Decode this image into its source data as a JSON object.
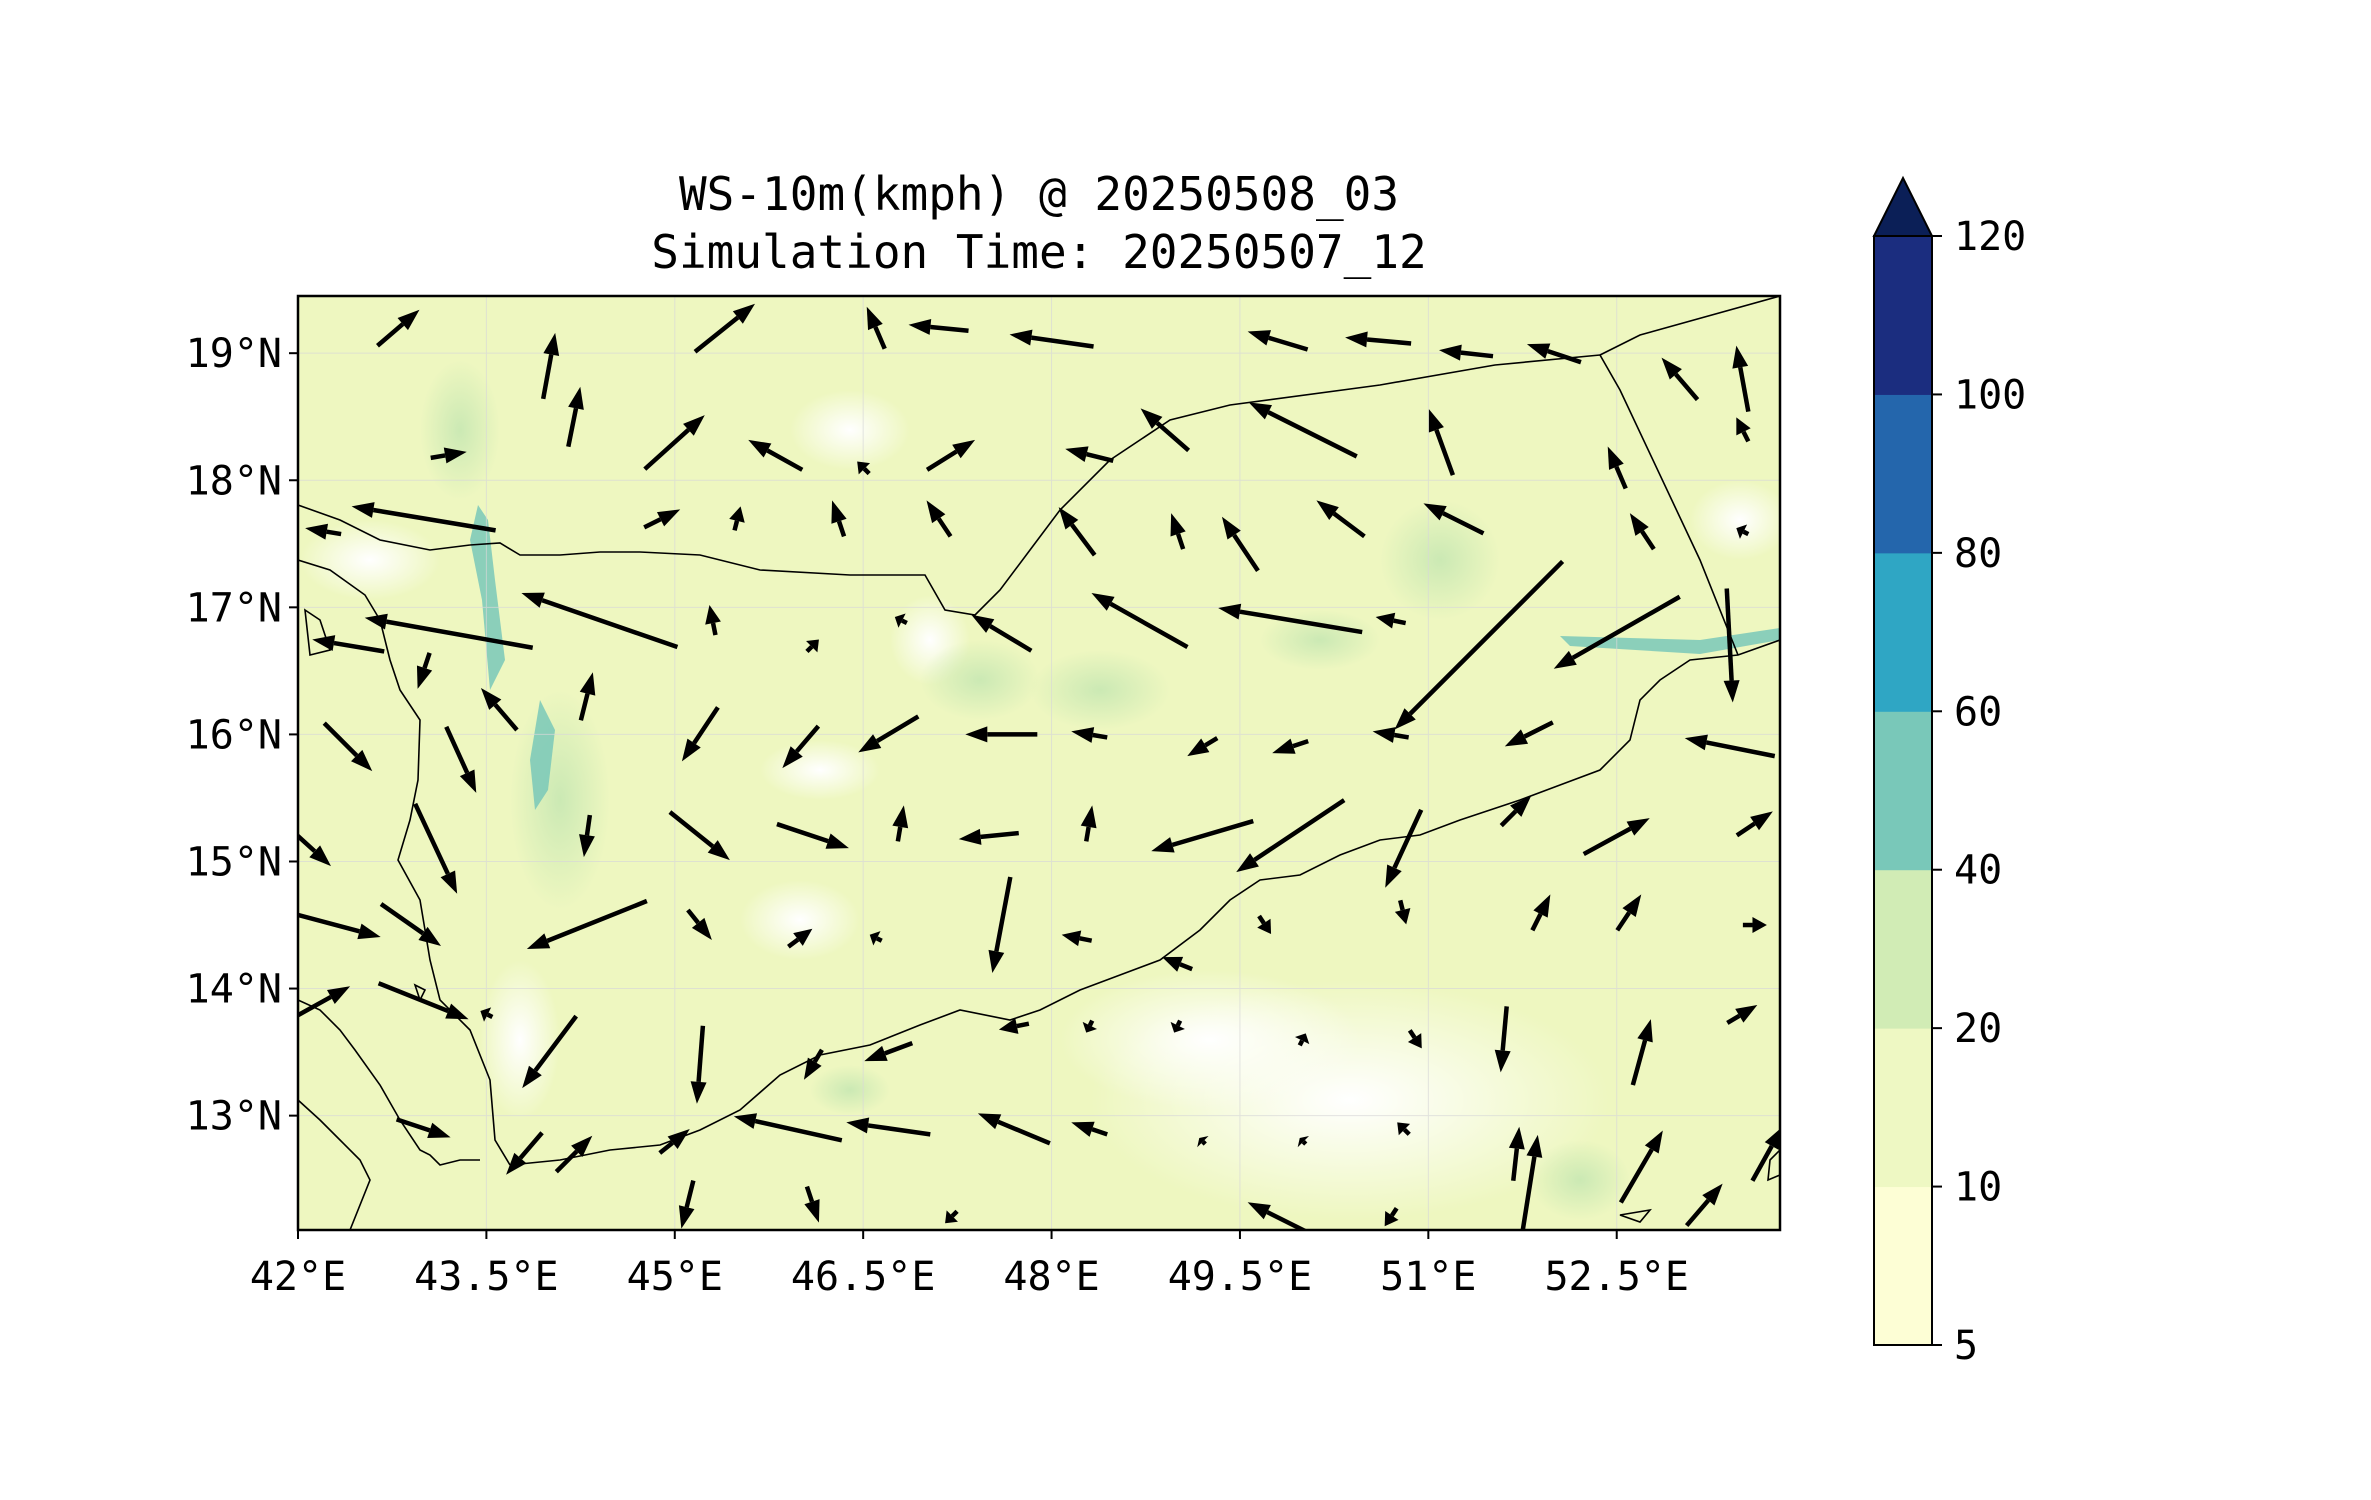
{
  "title_line1": "WS-10m(kmph) @ 20250508_03",
  "title_line2": "Simulation Time: 20250507_12",
  "map": {
    "lon_range": [
      42.0,
      53.8
    ],
    "lat_range": [
      12.1,
      19.45
    ],
    "x_tick_labels": [
      {
        "lon": 42.0,
        "label": "42°E"
      },
      {
        "lon": 43.5,
        "label": "43.5°E"
      },
      {
        "lon": 45.0,
        "label": "45°E"
      },
      {
        "lon": 46.5,
        "label": "46.5°E"
      },
      {
        "lon": 48.0,
        "label": "48°E"
      },
      {
        "lon": 49.5,
        "label": "49.5°E"
      },
      {
        "lon": 51.0,
        "label": "51°E"
      },
      {
        "lon": 52.5,
        "label": "52.5°E"
      }
    ],
    "y_tick_labels": [
      {
        "lat": 19,
        "label": "19°N"
      },
      {
        "lat": 18,
        "label": "18°N"
      },
      {
        "lat": 17,
        "label": "17°N"
      },
      {
        "lat": 16,
        "label": "16°N"
      },
      {
        "lat": 15,
        "label": "15°N"
      },
      {
        "lat": 14,
        "label": "14°N"
      },
      {
        "lat": 13,
        "label": "13°N"
      }
    ],
    "gridlines": true,
    "background_color": "#eef7c0"
  },
  "colorbar": {
    "levels": [
      5,
      10,
      20,
      40,
      60,
      80,
      100,
      120
    ],
    "labels": [
      "5",
      "10",
      "20",
      "40",
      "60",
      "80",
      "100",
      "120"
    ],
    "colors": [
      "#fdfed5",
      "#eef8c3",
      "#d1ecb5",
      "#79c8b9",
      "#2fa6c4",
      "#2466ac",
      "#1b2d7f"
    ],
    "extend_color": "#0b1f57",
    "extend": "max"
  },
  "chart_data": {
    "type": "quiver",
    "variable": "WS-10m(kmph)",
    "arrows": [
      [
        42.8,
        19.2,
        0.35,
        0.3
      ],
      [
        44.0,
        18.9,
        0.1,
        0.55
      ],
      [
        45.4,
        19.2,
        0.5,
        0.4
      ],
      [
        46.6,
        19.2,
        -0.15,
        0.35
      ],
      [
        47.1,
        19.2,
        -0.5,
        0.05
      ],
      [
        48.0,
        19.1,
        -0.7,
        0.1
      ],
      [
        49.8,
        19.1,
        -0.5,
        0.15
      ],
      [
        50.6,
        19.1,
        -0.55,
        0.05
      ],
      [
        51.3,
        19.0,
        -0.45,
        0.05
      ],
      [
        52.0,
        19.0,
        -0.45,
        0.15
      ],
      [
        53.0,
        18.8,
        -0.3,
        0.35
      ],
      [
        53.5,
        18.8,
        -0.1,
        0.55
      ],
      [
        43.2,
        18.2,
        0.3,
        0.05
      ],
      [
        44.2,
        18.5,
        0.1,
        0.5
      ],
      [
        45.0,
        18.3,
        0.5,
        0.45
      ],
      [
        45.8,
        18.2,
        -0.45,
        0.25
      ],
      [
        46.5,
        18.1,
        -0.1,
        0.1
      ],
      [
        47.2,
        18.2,
        0.4,
        0.25
      ],
      [
        48.3,
        18.2,
        -0.4,
        0.1
      ],
      [
        48.9,
        18.4,
        -0.4,
        0.35
      ],
      [
        50.0,
        18.4,
        -0.9,
        0.45
      ],
      [
        51.1,
        18.3,
        -0.2,
        0.55
      ],
      [
        52.5,
        18.1,
        -0.15,
        0.35
      ],
      [
        53.5,
        18.4,
        -0.1,
        0.2
      ],
      [
        42.2,
        17.6,
        -0.3,
        0.05
      ],
      [
        43.0,
        17.7,
        -1.2,
        0.2
      ],
      [
        44.9,
        17.7,
        0.3,
        0.15
      ],
      [
        45.5,
        17.7,
        0.05,
        0.2
      ],
      [
        46.3,
        17.7,
        -0.1,
        0.3
      ],
      [
        47.1,
        17.7,
        -0.2,
        0.3
      ],
      [
        48.2,
        17.6,
        -0.3,
        0.4
      ],
      [
        49.0,
        17.6,
        -0.1,
        0.3
      ],
      [
        49.5,
        17.5,
        -0.3,
        0.45
      ],
      [
        50.3,
        17.7,
        -0.4,
        0.3
      ],
      [
        51.2,
        17.7,
        -0.5,
        0.25
      ],
      [
        52.7,
        17.6,
        -0.2,
        0.3
      ],
      [
        53.5,
        17.6,
        -0.1,
        0.05
      ],
      [
        44.4,
        16.9,
        -1.3,
        0.45
      ],
      [
        43.2,
        16.8,
        -1.4,
        0.25
      ],
      [
        42.4,
        16.7,
        -0.6,
        0.1
      ],
      [
        45.3,
        16.9,
        -0.05,
        0.25
      ],
      [
        46.1,
        16.7,
        0.1,
        0.1
      ],
      [
        46.8,
        16.9,
        -0.1,
        0.05
      ],
      [
        47.6,
        16.8,
        -0.5,
        0.3
      ],
      [
        48.7,
        16.9,
        -0.8,
        0.45
      ],
      [
        49.9,
        16.9,
        -1.2,
        0.2
      ],
      [
        50.7,
        16.9,
        -0.25,
        0.05
      ],
      [
        51.4,
        16.7,
        -1.4,
        -1.4
      ],
      [
        52.5,
        16.8,
        -1.05,
        -0.6
      ],
      [
        53.4,
        16.7,
        0.05,
        -0.95
      ],
      [
        43.0,
        16.5,
        -0.1,
        -0.3
      ],
      [
        43.6,
        16.2,
        -0.3,
        0.35
      ],
      [
        44.3,
        16.3,
        0.1,
        0.4
      ],
      [
        45.2,
        16.0,
        -0.3,
        -0.45
      ],
      [
        46.0,
        15.9,
        -0.3,
        -0.35
      ],
      [
        46.7,
        16.0,
        -0.5,
        -0.3
      ],
      [
        47.6,
        16.0,
        -0.6,
        0.0
      ],
      [
        48.3,
        16.0,
        -0.3,
        0.05
      ],
      [
        49.2,
        15.9,
        -0.25,
        -0.15
      ],
      [
        49.9,
        15.9,
        -0.3,
        -0.1
      ],
      [
        50.7,
        16.0,
        -0.3,
        0.05
      ],
      [
        51.8,
        16.0,
        -0.4,
        -0.2
      ],
      [
        53.4,
        15.9,
        -0.75,
        0.15
      ],
      [
        42.4,
        15.9,
        0.4,
        -0.4
      ],
      [
        43.3,
        15.8,
        0.25,
        -0.55
      ],
      [
        43.1,
        15.1,
        0.35,
        -0.75
      ],
      [
        44.3,
        15.2,
        -0.05,
        -0.35
      ],
      [
        45.2,
        15.2,
        0.5,
        -0.4
      ],
      [
        46.1,
        15.2,
        0.6,
        -0.2
      ],
      [
        46.8,
        15.3,
        0.05,
        0.3
      ],
      [
        47.5,
        15.2,
        -0.5,
        -0.05
      ],
      [
        48.3,
        15.3,
        0.05,
        0.3
      ],
      [
        49.2,
        15.2,
        -0.85,
        -0.25
      ],
      [
        49.9,
        15.2,
        -0.9,
        -0.6
      ],
      [
        50.8,
        15.1,
        -0.3,
        -0.65
      ],
      [
        51.7,
        15.4,
        0.25,
        0.25
      ],
      [
        52.5,
        15.2,
        0.55,
        0.3
      ],
      [
        53.6,
        15.3,
        0.3,
        0.2
      ],
      [
        42.0,
        15.2,
        0.55,
        -0.5
      ],
      [
        42.3,
        14.5,
        0.75,
        -0.2
      ],
      [
        42.9,
        14.5,
        0.5,
        -0.35
      ],
      [
        44.3,
        14.5,
        -1.0,
        -0.4
      ],
      [
        45.2,
        14.5,
        0.2,
        -0.25
      ],
      [
        46.0,
        14.4,
        0.2,
        0.15
      ],
      [
        46.6,
        14.4,
        -0.1,
        0.05
      ],
      [
        47.6,
        14.5,
        -0.15,
        -0.8
      ],
      [
        48.2,
        14.4,
        -0.25,
        0.05
      ],
      [
        49.0,
        14.2,
        -0.25,
        0.1
      ],
      [
        49.7,
        14.5,
        0.1,
        -0.15
      ],
      [
        50.8,
        14.6,
        0.05,
        -0.2
      ],
      [
        51.9,
        14.6,
        0.15,
        0.3
      ],
      [
        52.6,
        14.6,
        0.2,
        0.3
      ],
      [
        53.6,
        14.5,
        0.2,
        0.0
      ],
      [
        42.2,
        13.9,
        0.45,
        0.25
      ],
      [
        43.0,
        13.9,
        0.75,
        -0.3
      ],
      [
        43.5,
        13.8,
        -0.1,
        0.05
      ],
      [
        44.0,
        13.5,
        -0.45,
        -0.6
      ],
      [
        45.2,
        13.4,
        -0.05,
        -0.65
      ],
      [
        46.1,
        13.4,
        -0.15,
        -0.25
      ],
      [
        46.7,
        13.5,
        -0.4,
        -0.15
      ],
      [
        47.7,
        13.7,
        -0.25,
        -0.05
      ],
      [
        48.3,
        13.7,
        -0.05,
        -0.1
      ],
      [
        49.0,
        13.7,
        -0.05,
        -0.1
      ],
      [
        50.0,
        13.6,
        0.05,
        0.1
      ],
      [
        50.9,
        13.6,
        0.1,
        -0.15
      ],
      [
        51.6,
        13.6,
        -0.05,
        -0.55
      ],
      [
        52.7,
        13.5,
        0.15,
        0.55
      ],
      [
        53.5,
        13.8,
        0.25,
        0.15
      ],
      [
        43.0,
        12.9,
        0.45,
        -0.15
      ],
      [
        43.8,
        12.7,
        -0.3,
        -0.35
      ],
      [
        44.2,
        12.7,
        0.3,
        0.3
      ],
      [
        45.0,
        12.8,
        0.25,
        0.2
      ],
      [
        45.9,
        12.9,
        -0.9,
        0.2
      ],
      [
        46.7,
        12.9,
        -0.7,
        0.1
      ],
      [
        47.7,
        12.9,
        -0.6,
        0.25
      ],
      [
        48.3,
        12.9,
        -0.3,
        0.1
      ],
      [
        49.2,
        12.8,
        -0.05,
        0.05
      ],
      [
        50.0,
        12.8,
        -0.05,
        0.05
      ],
      [
        50.8,
        12.9,
        -0.1,
        0.1
      ],
      [
        51.7,
        12.7,
        0.05,
        0.45
      ],
      [
        52.7,
        12.6,
        0.35,
        0.6
      ],
      [
        53.7,
        12.7,
        0.25,
        0.45
      ],
      [
        45.1,
        12.3,
        -0.1,
        -0.4
      ],
      [
        46.1,
        12.3,
        0.1,
        -0.3
      ],
      [
        47.2,
        12.2,
        -0.1,
        -0.1
      ],
      [
        49.8,
        12.2,
        -0.5,
        0.25
      ],
      [
        50.7,
        12.2,
        -0.1,
        -0.15
      ],
      [
        51.8,
        12.4,
        0.15,
        0.95
      ],
      [
        53.2,
        12.3,
        0.3,
        0.35
      ]
    ]
  }
}
